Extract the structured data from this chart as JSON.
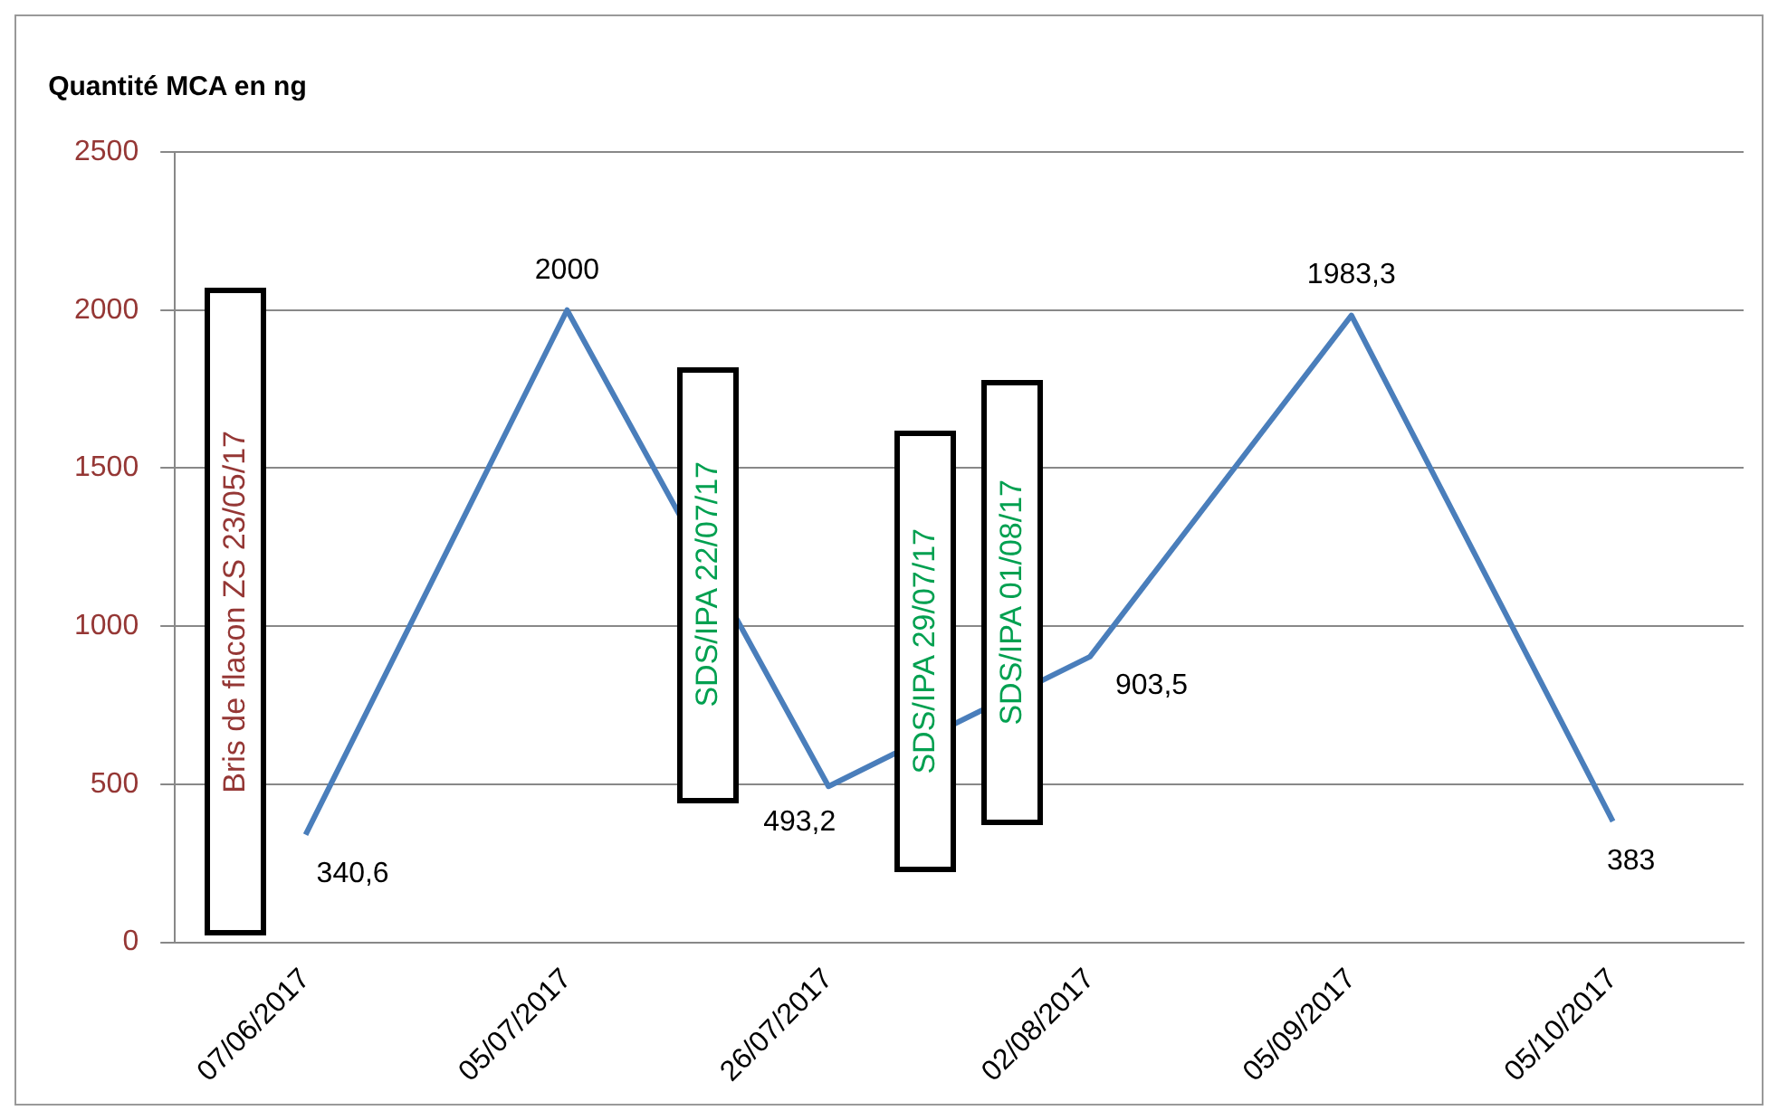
{
  "chart_data": {
    "type": "line",
    "ylabel": "Quantité MCA en ng",
    "categories": [
      "07/06/2017",
      "05/07/2017",
      "26/07/2017",
      "02/08/2017",
      "05/09/2017",
      "05/10/2017"
    ],
    "series": [
      {
        "color": "#4a7ebb",
        "values": [
          340.6,
          2000,
          493.2,
          903.5,
          1983.3,
          383
        ]
      }
    ],
    "value_labels": [
      "340,6",
      "2000",
      "493,2",
      "903,5",
      "1983,3",
      "383"
    ],
    "ylim": [
      0,
      2500
    ],
    "yticks": [
      0,
      500,
      1000,
      1500,
      2000,
      2500
    ],
    "grid": "y",
    "legend": false,
    "marker": "none",
    "annotations": [
      "Bris de flacon ZS 23/05/17",
      "SDS/IPA 22/07/17",
      "SDS/IPA 29/07/17",
      "SDS/IPA 01/08/17"
    ]
  }
}
